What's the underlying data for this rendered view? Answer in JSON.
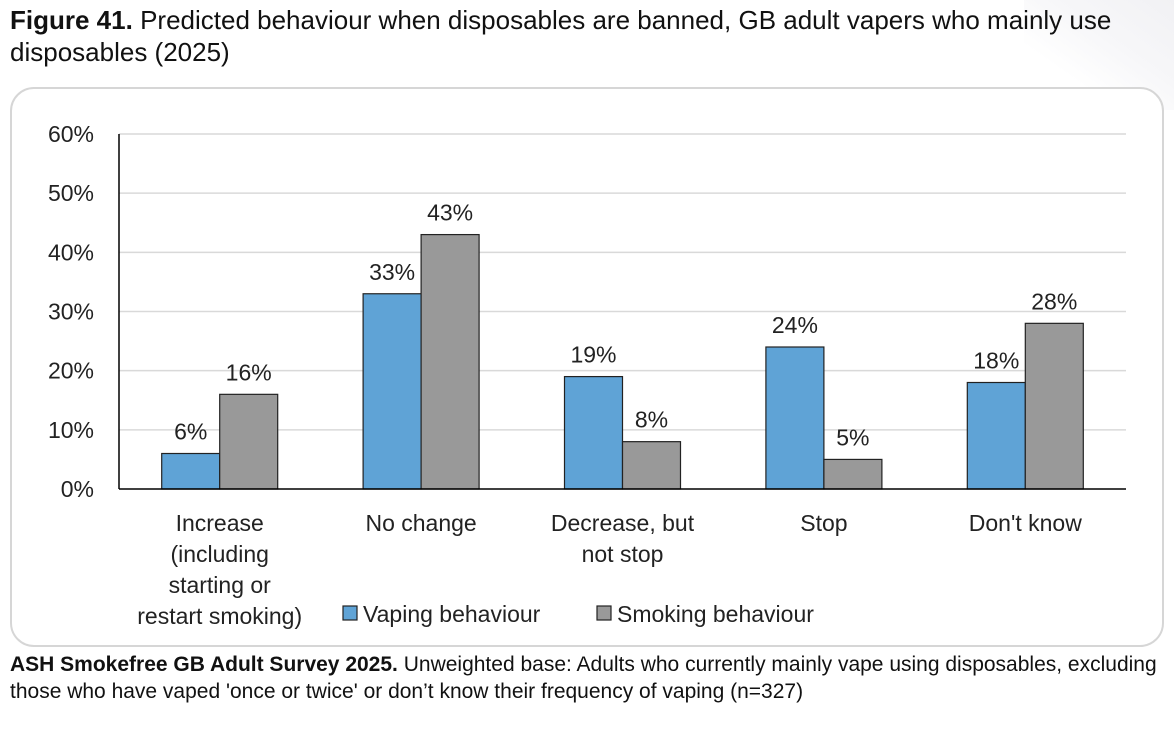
{
  "figure": {
    "label": "Figure 41.",
    "title": "Predicted behaviour when disposables are banned, GB adult vapers who mainly use disposables (2025)"
  },
  "source": {
    "label": "ASH Smokefree GB Adult Survey 2025.",
    "text": "Unweighted base: Adults who currently mainly vape using disposables, excluding those who have vaped 'once or twice' or don’t know their frequency of vaping (n=327)"
  },
  "colors": {
    "vaping": "#5fa3d6",
    "smoking": "#999999",
    "axis": "#000000",
    "grid": "#d9d9d9"
  },
  "chart_data": {
    "type": "bar",
    "title": "",
    "xlabel": "",
    "ylabel": "",
    "categories": [
      [
        "Increase",
        "(including",
        "starting or",
        "restart smoking)"
      ],
      [
        "No change"
      ],
      [
        "Decrease, but",
        "not stop"
      ],
      [
        "Stop"
      ],
      [
        "Don't know"
      ]
    ],
    "series": [
      {
        "name": "Vaping behaviour",
        "values": [
          6,
          33,
          19,
          24,
          18
        ],
        "labels": [
          "6%",
          "33%",
          "19%",
          "24%",
          "18%"
        ]
      },
      {
        "name": "Smoking behaviour",
        "values": [
          16,
          43,
          8,
          5,
          28
        ],
        "labels": [
          "16%",
          "43%",
          "8%",
          "5%",
          "28%"
        ]
      }
    ],
    "ylim": [
      0,
      60
    ],
    "yticks": [
      0,
      10,
      20,
      30,
      40,
      50,
      60
    ],
    "ytick_labels": [
      "0%",
      "10%",
      "20%",
      "30%",
      "40%",
      "50%",
      "60%"
    ],
    "grid": true,
    "legend_position": "bottom"
  }
}
